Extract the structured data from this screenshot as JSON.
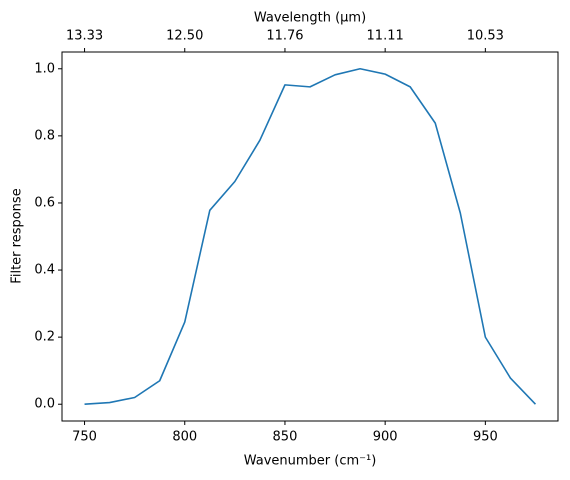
{
  "chart_data": {
    "type": "line",
    "xlabel": "Wavenumber (cm⁻¹)",
    "ylabel": "Filter response",
    "x2label": "Wavelength (μm)",
    "x": [
      750,
      762.5,
      775,
      787.5,
      800,
      812.5,
      825,
      837.5,
      850,
      862.5,
      875,
      887.5,
      900,
      912.5,
      925,
      937.5,
      950,
      962.5,
      975
    ],
    "values": [
      0.0,
      0.005,
      0.02,
      0.07,
      0.245,
      0.578,
      0.664,
      0.787,
      0.952,
      0.946,
      0.982,
      1.0,
      0.984,
      0.946,
      0.838,
      0.57,
      0.2,
      0.078,
      0.0
    ],
    "color": "#1f77b4",
    "xlim": [
      738.75,
      986.25
    ],
    "ylim": [
      -0.05,
      1.05
    ],
    "xticks": [
      750,
      800,
      850,
      900,
      950
    ],
    "yticks": [
      {
        "value": 0,
        "label": "0.0"
      },
      0.2,
      0.4,
      0.6,
      0.8,
      {
        "value": 1,
        "label": "1.0"
      }
    ],
    "x2ticks": [
      {
        "value": 13.3333,
        "label": "13.33"
      },
      {
        "value": 12.5,
        "label": "12.50"
      },
      {
        "value": 11.7647,
        "label": "11.76"
      },
      {
        "value": 11.1111,
        "label": "11.11"
      },
      {
        "value": 10.5263,
        "label": "10.53"
      }
    ],
    "x2_scale": "reciprocal",
    "grid": false
  }
}
